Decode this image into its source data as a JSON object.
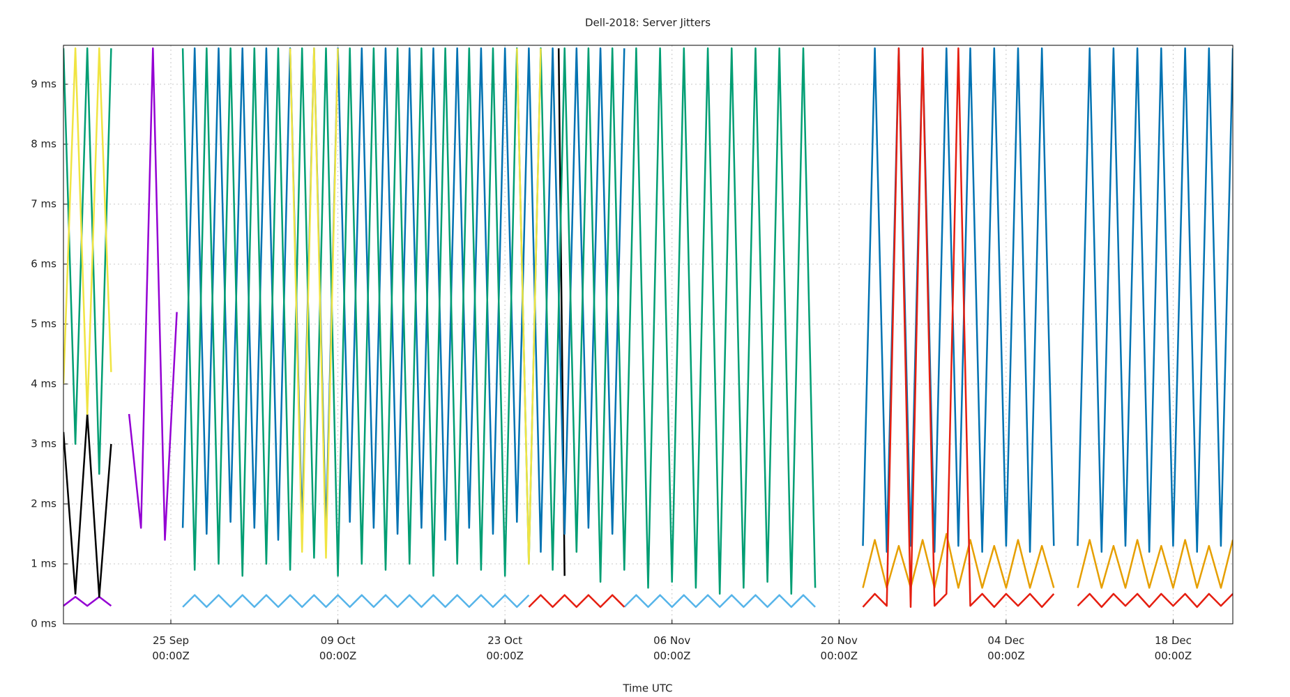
{
  "chart_data": {
    "type": "line",
    "title": "Dell-2018: Server Jitters",
    "x_label": "Time UTC",
    "xlim": [
      "16 Sep 00:00Z",
      "23 Dec 00:00Z"
    ],
    "xticks": [
      "25 Sep 00:00Z",
      "09 Oct 00:00Z",
      "23 Oct 00:00Z",
      "06 Nov 00:00Z",
      "20 Nov 00:00Z",
      "04 Dec 00:00Z",
      "18 Dec 00:00Z"
    ],
    "ylim": [
      0,
      9.65
    ],
    "yticks": [
      {
        "value": 0,
        "label": "0 ms"
      },
      {
        "value": 1,
        "label": "1 ms"
      },
      {
        "value": 2,
        "label": "2 ms"
      },
      {
        "value": 3,
        "label": "3 ms"
      },
      {
        "value": 4,
        "label": "4 ms"
      },
      {
        "value": 5,
        "label": "5 ms"
      },
      {
        "value": 6,
        "label": "6 ms"
      },
      {
        "value": 7,
        "label": "7 ms"
      },
      {
        "value": 8,
        "label": "8 ms"
      },
      {
        "value": 9,
        "label": "9 ms"
      }
    ],
    "grid": true,
    "series": [
      {
        "color": "#9400d3",
        "x": [
          "16 Sep 00:00Z",
          "17 Sep 00:00Z",
          "18 Sep 00:00Z",
          "19 Sep 00:00Z",
          "20 Sep 00:00Z",
          null,
          "21 Sep 12:00Z",
          "22 Sep 12:00Z",
          "23 Sep 12:00Z",
          "24 Sep 12:00Z",
          "25 Sep 12:00Z"
        ],
        "values": [
          0.3,
          0.45,
          0.3,
          0.45,
          0.3,
          null,
          3.5,
          1.6,
          9.6,
          1.4,
          5.2
        ]
      },
      {
        "color": "#000000",
        "x": [
          "16 Sep 00:00Z",
          "17 Sep 00:00Z",
          "18 Sep 00:00Z",
          "19 Sep 00:00Z",
          "20 Sep 00:00Z",
          null,
          "27 Oct 12:00Z",
          "28 Oct 00:00Z"
        ],
        "values": [
          3.2,
          0.5,
          3.5,
          0.45,
          3.0,
          null,
          9.6,
          0.8
        ]
      },
      {
        "color": "#0072b2",
        "x": [
          "26 Sep 00:00Z",
          "27 Sep 00:00Z",
          "28 Sep 00:00Z",
          "29 Sep 00:00Z",
          "30 Sep 00:00Z",
          "01 Oct 00:00Z",
          "02 Oct 00:00Z",
          "03 Oct 00:00Z",
          "04 Oct 00:00Z",
          "05 Oct 00:00Z",
          "06 Oct 00:00Z",
          "07 Oct 00:00Z",
          "08 Oct 00:00Z",
          "09 Oct 00:00Z",
          "10 Oct 00:00Z",
          "11 Oct 00:00Z",
          "12 Oct 00:00Z",
          "13 Oct 00:00Z",
          "14 Oct 00:00Z",
          "15 Oct 00:00Z",
          "16 Oct 00:00Z",
          "17 Oct 00:00Z",
          "18 Oct 00:00Z",
          "19 Oct 00:00Z",
          "20 Oct 00:00Z",
          "21 Oct 00:00Z",
          "22 Oct 00:00Z",
          "23 Oct 00:00Z",
          "24 Oct 00:00Z",
          "25 Oct 00:00Z",
          "26 Oct 00:00Z",
          "27 Oct 00:00Z",
          "28 Oct 00:00Z",
          "29 Oct 00:00Z",
          "30 Oct 00:00Z",
          "31 Oct 00:00Z",
          "01 Nov 00:00Z",
          "02 Nov 00:00Z",
          null,
          "22 Nov 00:00Z",
          "23 Nov 00:00Z",
          "24 Nov 00:00Z",
          "25 Nov 00:00Z",
          "26 Nov 00:00Z",
          "27 Nov 00:00Z",
          "28 Nov 00:00Z",
          "29 Nov 00:00Z",
          "30 Nov 00:00Z",
          "01 Dec 00:00Z",
          "02 Dec 00:00Z",
          "03 Dec 00:00Z",
          "04 Dec 00:00Z",
          "05 Dec 00:00Z",
          "06 Dec 00:00Z",
          "07 Dec 00:00Z",
          "08 Dec 00:00Z",
          null,
          "10 Dec 00:00Z",
          "11 Dec 00:00Z",
          "12 Dec 00:00Z",
          "13 Dec 00:00Z",
          "14 Dec 00:00Z",
          "15 Dec 00:00Z",
          "16 Dec 00:00Z",
          "17 Dec 00:00Z",
          "18 Dec 00:00Z",
          "19 Dec 00:00Z",
          "20 Dec 00:00Z",
          "21 Dec 00:00Z",
          "22 Dec 00:00Z",
          "23 Dec 00:00Z"
        ],
        "values": [
          1.6,
          9.6,
          1.5,
          9.6,
          1.7,
          9.6,
          1.6,
          9.6,
          1.4,
          9.6,
          1.6,
          9.6,
          1.5,
          9.6,
          1.7,
          9.6,
          1.6,
          9.6,
          1.5,
          9.6,
          1.6,
          9.6,
          1.4,
          9.6,
          1.6,
          9.6,
          1.5,
          9.6,
          1.7,
          9.6,
          1.2,
          9.6,
          1.5,
          9.6,
          1.6,
          9.6,
          1.5,
          9.6,
          null,
          1.3,
          9.6,
          1.2,
          9.6,
          1.3,
          9.6,
          1.2,
          9.6,
          1.3,
          9.6,
          1.2,
          9.6,
          1.3,
          9.6,
          1.2,
          9.6,
          1.3,
          null,
          1.3,
          9.6,
          1.2,
          9.6,
          1.3,
          9.6,
          1.2,
          9.6,
          1.3,
          9.6,
          1.2,
          9.6,
          1.3,
          9.6
        ]
      },
      {
        "color": "#009e73",
        "x": [
          "16 Sep 00:00Z",
          "17 Sep 00:00Z",
          "18 Sep 00:00Z",
          "19 Sep 00:00Z",
          "20 Sep 00:00Z",
          null,
          "26 Sep 00:00Z",
          "27 Sep 00:00Z",
          "28 Sep 00:00Z",
          "29 Sep 00:00Z",
          "30 Sep 00:00Z",
          "01 Oct 00:00Z",
          "02 Oct 00:00Z",
          "03 Oct 00:00Z",
          "04 Oct 00:00Z",
          "05 Oct 00:00Z",
          "06 Oct 00:00Z",
          "07 Oct 00:00Z",
          "08 Oct 00:00Z",
          "09 Oct 00:00Z",
          "10 Oct 00:00Z",
          "11 Oct 00:00Z",
          "12 Oct 00:00Z",
          "13 Oct 00:00Z",
          "14 Oct 00:00Z",
          "15 Oct 00:00Z",
          "16 Oct 00:00Z",
          "17 Oct 00:00Z",
          "18 Oct 00:00Z",
          "19 Oct 00:00Z",
          "20 Oct 00:00Z",
          "21 Oct 00:00Z",
          "22 Oct 00:00Z",
          "23 Oct 00:00Z",
          "24 Oct 00:00Z",
          "25 Oct 00:00Z",
          "26 Oct 00:00Z",
          "27 Oct 00:00Z",
          "28 Oct 00:00Z",
          "29 Oct 00:00Z",
          "30 Oct 00:00Z",
          "31 Oct 00:00Z",
          "01 Nov 00:00Z",
          "02 Nov 00:00Z",
          "03 Nov 00:00Z",
          "04 Nov 00:00Z",
          "05 Nov 00:00Z",
          "06 Nov 00:00Z",
          "07 Nov 00:00Z",
          "08 Nov 00:00Z",
          "09 Nov 00:00Z",
          "10 Nov 00:00Z",
          "11 Nov 00:00Z",
          "12 Nov 00:00Z",
          "13 Nov 00:00Z",
          "14 Nov 00:00Z",
          "15 Nov 00:00Z",
          "16 Nov 00:00Z",
          "17 Nov 00:00Z",
          "18 Nov 00:00Z"
        ],
        "values": [
          9.6,
          3.0,
          9.6,
          2.5,
          9.6,
          null,
          9.6,
          0.9,
          9.6,
          1.0,
          9.6,
          0.8,
          9.6,
          1.0,
          9.6,
          0.9,
          9.6,
          1.1,
          9.6,
          0.8,
          9.6,
          1.0,
          9.6,
          0.9,
          9.6,
          1.0,
          9.6,
          0.8,
          9.6,
          1.0,
          9.6,
          0.9,
          9.6,
          0.8,
          9.6,
          1.0,
          9.6,
          0.9,
          9.6,
          1.2,
          9.6,
          0.7,
          9.6,
          0.9,
          9.6,
          0.6,
          9.6,
          0.7,
          9.6,
          0.6,
          9.6,
          0.5,
          9.6,
          0.6,
          9.6,
          0.7,
          9.6,
          0.5,
          9.6,
          0.6
        ]
      },
      {
        "color": "#f0e442",
        "x": [
          "16 Sep 00:00Z",
          "17 Sep 00:00Z",
          "18 Sep 00:00Z",
          "19 Sep 00:00Z",
          "20 Sep 00:00Z",
          null,
          "05 Oct 00:00Z",
          "06 Oct 00:00Z",
          "07 Oct 00:00Z",
          "08 Oct 00:00Z",
          "09 Oct 00:00Z",
          null,
          "24 Oct 00:00Z",
          "25 Oct 00:00Z",
          "26 Oct 00:00Z"
        ],
        "values": [
          4.0,
          9.6,
          3.5,
          9.6,
          4.2,
          null,
          9.6,
          1.2,
          9.6,
          1.1,
          9.6,
          null,
          9.6,
          1.0,
          9.6
        ]
      },
      {
        "color": "#56b4e9",
        "x": [
          "26 Sep 00:00Z",
          "27 Sep 00:00Z",
          "28 Sep 00:00Z",
          "29 Sep 00:00Z",
          "30 Sep 00:00Z",
          "01 Oct 00:00Z",
          "02 Oct 00:00Z",
          "03 Oct 00:00Z",
          "04 Oct 00:00Z",
          "05 Oct 00:00Z",
          "06 Oct 00:00Z",
          "07 Oct 00:00Z",
          "08 Oct 00:00Z",
          "09 Oct 00:00Z",
          "10 Oct 00:00Z",
          "11 Oct 00:00Z",
          "12 Oct 00:00Z",
          "13 Oct 00:00Z",
          "14 Oct 00:00Z",
          "15 Oct 00:00Z",
          "16 Oct 00:00Z",
          "17 Oct 00:00Z",
          "18 Oct 00:00Z",
          "19 Oct 00:00Z",
          "20 Oct 00:00Z",
          "21 Oct 00:00Z",
          "22 Oct 00:00Z",
          "23 Oct 00:00Z",
          "24 Oct 00:00Z",
          "25 Oct 00:00Z",
          null,
          "02 Nov 00:00Z",
          "03 Nov 00:00Z",
          "04 Nov 00:00Z",
          "05 Nov 00:00Z",
          "06 Nov 00:00Z",
          "07 Nov 00:00Z",
          "08 Nov 00:00Z",
          "09 Nov 00:00Z",
          "10 Nov 00:00Z",
          "11 Nov 00:00Z",
          "12 Nov 00:00Z",
          "13 Nov 00:00Z",
          "14 Nov 00:00Z",
          "15 Nov 00:00Z",
          "16 Nov 00:00Z",
          "17 Nov 00:00Z",
          "18 Nov 00:00Z"
        ],
        "values": [
          0.28,
          0.48,
          0.28,
          0.48,
          0.28,
          0.48,
          0.28,
          0.48,
          0.28,
          0.48,
          0.28,
          0.48,
          0.28,
          0.48,
          0.28,
          0.48,
          0.28,
          0.48,
          0.28,
          0.48,
          0.28,
          0.48,
          0.28,
          0.48,
          0.28,
          0.48,
          0.28,
          0.48,
          0.28,
          0.48,
          null,
          0.28,
          0.48,
          0.28,
          0.48,
          0.28,
          0.48,
          0.28,
          0.48,
          0.28,
          0.48,
          0.28,
          0.48,
          0.28,
          0.48,
          0.28,
          0.48,
          0.28
        ]
      },
      {
        "color": "#e69f00",
        "x": [
          "22 Nov 00:00Z",
          "23 Nov 00:00Z",
          "24 Nov 00:00Z",
          "25 Nov 00:00Z",
          "26 Nov 00:00Z",
          "27 Nov 00:00Z",
          "28 Nov 00:00Z",
          "29 Nov 00:00Z",
          "30 Nov 00:00Z",
          "01 Dec 00:00Z",
          "02 Dec 00:00Z",
          "03 Dec 00:00Z",
          "04 Dec 00:00Z",
          "05 Dec 00:00Z",
          "06 Dec 00:00Z",
          "07 Dec 00:00Z",
          "08 Dec 00:00Z",
          null,
          "10 Dec 00:00Z",
          "11 Dec 00:00Z",
          "12 Dec 00:00Z",
          "13 Dec 00:00Z",
          "14 Dec 00:00Z",
          "15 Dec 00:00Z",
          "16 Dec 00:00Z",
          "17 Dec 00:00Z",
          "18 Dec 00:00Z",
          "19 Dec 00:00Z",
          "20 Dec 00:00Z",
          "21 Dec 00:00Z",
          "22 Dec 00:00Z",
          "23 Dec 00:00Z"
        ],
        "values": [
          0.6,
          1.4,
          0.6,
          1.3,
          0.6,
          1.4,
          0.6,
          1.5,
          0.6,
          1.4,
          0.6,
          1.3,
          0.6,
          1.4,
          0.6,
          1.3,
          0.6,
          null,
          0.6,
          1.4,
          0.6,
          1.3,
          0.6,
          1.4,
          0.6,
          1.3,
          0.6,
          1.4,
          0.6,
          1.3,
          0.6,
          1.4
        ]
      },
      {
        "color": "#e51e10",
        "x": [
          "25 Oct 00:00Z",
          "26 Oct 00:00Z",
          "27 Oct 00:00Z",
          "28 Oct 00:00Z",
          "29 Oct 00:00Z",
          "30 Oct 00:00Z",
          "31 Oct 00:00Z",
          "01 Nov 00:00Z",
          "02 Nov 00:00Z",
          null,
          "22 Nov 00:00Z",
          "23 Nov 00:00Z",
          "24 Nov 00:00Z",
          "25 Nov 00:00Z",
          "26 Nov 00:00Z",
          "27 Nov 00:00Z",
          "28 Nov 00:00Z",
          "29 Nov 00:00Z",
          "30 Nov 00:00Z",
          "01 Dec 00:00Z",
          "02 Dec 00:00Z",
          "03 Dec 00:00Z",
          "04 Dec 00:00Z",
          "05 Dec 00:00Z",
          "06 Dec 00:00Z",
          "07 Dec 00:00Z",
          "08 Dec 00:00Z",
          null,
          "10 Dec 00:00Z",
          "11 Dec 00:00Z",
          "12 Dec 00:00Z",
          "13 Dec 00:00Z",
          "14 Dec 00:00Z",
          "15 Dec 00:00Z",
          "16 Dec 00:00Z",
          "17 Dec 00:00Z",
          "18 Dec 00:00Z",
          "19 Dec 00:00Z",
          "20 Dec 00:00Z",
          "21 Dec 00:00Z",
          "22 Dec 00:00Z",
          "23 Dec 00:00Z"
        ],
        "values": [
          0.28,
          0.48,
          0.28,
          0.48,
          0.28,
          0.48,
          0.28,
          0.48,
          0.28,
          null,
          0.28,
          0.5,
          0.3,
          9.6,
          0.28,
          9.6,
          0.3,
          0.5,
          9.6,
          0.3,
          0.5,
          0.28,
          0.5,
          0.3,
          0.5,
          0.28,
          0.5,
          null,
          0.3,
          0.5,
          0.28,
          0.5,
          0.3,
          0.5,
          0.28,
          0.5,
          0.3,
          0.5,
          0.28,
          0.5,
          0.3,
          0.5
        ]
      }
    ]
  }
}
